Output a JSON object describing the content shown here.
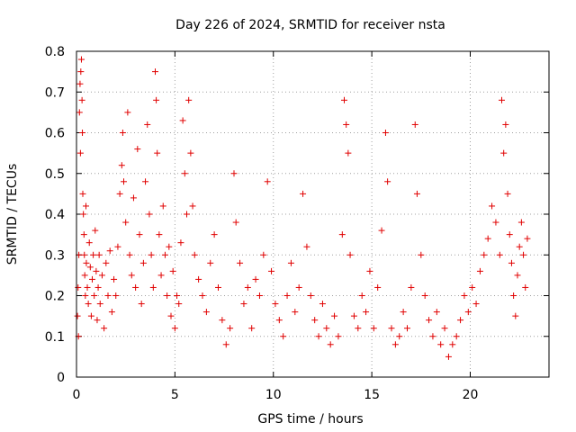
{
  "chart_data": {
    "type": "scatter",
    "title": "Day 226 of 2024, SRMTID for receiver nsta",
    "xlabel": "GPS time / hours",
    "ylabel": "SRMTID / TECUs",
    "xlim": [
      0,
      24
    ],
    "ylim": [
      0,
      0.8
    ],
    "xticks": [
      0,
      5,
      10,
      15,
      20
    ],
    "xtick_labels": [
      "0",
      "5",
      "10",
      "15",
      "20"
    ],
    "yticks": [
      0,
      0.1,
      0.2,
      0.3,
      0.4,
      0.5,
      0.6,
      0.7,
      0.8
    ],
    "ytick_labels": [
      "0",
      "0.1",
      "0.2",
      "0.3",
      "0.4",
      "0.5",
      "0.6",
      "0.7",
      "0.8"
    ],
    "grid": true,
    "marker": "plus",
    "color": "#e00000",
    "series": [
      {
        "name": "nsta",
        "points": [
          [
            0.05,
            0.15
          ],
          [
            0.08,
            0.22
          ],
          [
            0.1,
            0.1
          ],
          [
            0.12,
            0.3
          ],
          [
            0.15,
            0.65
          ],
          [
            0.18,
            0.72
          ],
          [
            0.2,
            0.55
          ],
          [
            0.22,
            0.75
          ],
          [
            0.25,
            0.78
          ],
          [
            0.28,
            0.68
          ],
          [
            0.3,
            0.6
          ],
          [
            0.32,
            0.45
          ],
          [
            0.35,
            0.4
          ],
          [
            0.38,
            0.35
          ],
          [
            0.4,
            0.3
          ],
          [
            0.42,
            0.25
          ],
          [
            0.45,
            0.2
          ],
          [
            0.48,
            0.42
          ],
          [
            0.5,
            0.28
          ],
          [
            0.55,
            0.22
          ],
          [
            0.6,
            0.18
          ],
          [
            0.65,
            0.33
          ],
          [
            0.7,
            0.27
          ],
          [
            0.75,
            0.15
          ],
          [
            0.8,
            0.24
          ],
          [
            0.85,
            0.3
          ],
          [
            0.9,
            0.2
          ],
          [
            0.95,
            0.36
          ],
          [
            1.0,
            0.26
          ],
          [
            1.05,
            0.14
          ],
          [
            1.1,
            0.22
          ],
          [
            1.15,
            0.3
          ],
          [
            1.2,
            0.18
          ],
          [
            1.3,
            0.25
          ],
          [
            1.4,
            0.12
          ],
          [
            1.5,
            0.28
          ],
          [
            1.6,
            0.2
          ],
          [
            1.7,
            0.31
          ],
          [
            1.8,
            0.16
          ],
          [
            1.9,
            0.24
          ],
          [
            2.0,
            0.2
          ],
          [
            2.1,
            0.32
          ],
          [
            2.2,
            0.45
          ],
          [
            2.3,
            0.52
          ],
          [
            2.35,
            0.6
          ],
          [
            2.4,
            0.48
          ],
          [
            2.5,
            0.38
          ],
          [
            2.6,
            0.65
          ],
          [
            2.7,
            0.3
          ],
          [
            2.8,
            0.25
          ],
          [
            2.9,
            0.44
          ],
          [
            3.0,
            0.22
          ],
          [
            3.1,
            0.56
          ],
          [
            3.2,
            0.35
          ],
          [
            3.3,
            0.18
          ],
          [
            3.4,
            0.28
          ],
          [
            3.5,
            0.48
          ],
          [
            3.6,
            0.62
          ],
          [
            3.7,
            0.4
          ],
          [
            3.8,
            0.3
          ],
          [
            3.9,
            0.22
          ],
          [
            4.0,
            0.75
          ],
          [
            4.05,
            0.68
          ],
          [
            4.1,
            0.55
          ],
          [
            4.2,
            0.35
          ],
          [
            4.3,
            0.25
          ],
          [
            4.4,
            0.42
          ],
          [
            4.5,
            0.3
          ],
          [
            4.6,
            0.2
          ],
          [
            4.7,
            0.32
          ],
          [
            4.8,
            0.15
          ],
          [
            4.9,
            0.26
          ],
          [
            5.0,
            0.12
          ],
          [
            5.1,
            0.2
          ],
          [
            5.2,
            0.18
          ],
          [
            5.3,
            0.33
          ],
          [
            5.4,
            0.63
          ],
          [
            5.5,
            0.5
          ],
          [
            5.6,
            0.4
          ],
          [
            5.7,
            0.68
          ],
          [
            5.8,
            0.55
          ],
          [
            5.9,
            0.42
          ],
          [
            6.0,
            0.3
          ],
          [
            6.2,
            0.24
          ],
          [
            6.4,
            0.2
          ],
          [
            6.6,
            0.16
          ],
          [
            6.8,
            0.28
          ],
          [
            7.0,
            0.35
          ],
          [
            7.2,
            0.22
          ],
          [
            7.4,
            0.14
          ],
          [
            7.6,
            0.08
          ],
          [
            7.8,
            0.12
          ],
          [
            8.0,
            0.5
          ],
          [
            8.1,
            0.38
          ],
          [
            8.3,
            0.28
          ],
          [
            8.5,
            0.18
          ],
          [
            8.7,
            0.22
          ],
          [
            8.9,
            0.12
          ],
          [
            9.1,
            0.24
          ],
          [
            9.3,
            0.2
          ],
          [
            9.5,
            0.3
          ],
          [
            9.7,
            0.48
          ],
          [
            9.9,
            0.26
          ],
          [
            10.1,
            0.18
          ],
          [
            10.3,
            0.14
          ],
          [
            10.5,
            0.1
          ],
          [
            10.7,
            0.2
          ],
          [
            10.9,
            0.28
          ],
          [
            11.1,
            0.16
          ],
          [
            11.3,
            0.22
          ],
          [
            11.5,
            0.45
          ],
          [
            11.7,
            0.32
          ],
          [
            11.9,
            0.2
          ],
          [
            12.1,
            0.14
          ],
          [
            12.3,
            0.1
          ],
          [
            12.5,
            0.18
          ],
          [
            12.7,
            0.12
          ],
          [
            12.9,
            0.08
          ],
          [
            13.1,
            0.15
          ],
          [
            13.3,
            0.1
          ],
          [
            13.5,
            0.35
          ],
          [
            13.6,
            0.68
          ],
          [
            13.7,
            0.62
          ],
          [
            13.8,
            0.55
          ],
          [
            13.9,
            0.3
          ],
          [
            14.1,
            0.15
          ],
          [
            14.3,
            0.12
          ],
          [
            14.5,
            0.2
          ],
          [
            14.7,
            0.16
          ],
          [
            14.9,
            0.26
          ],
          [
            15.1,
            0.12
          ],
          [
            15.3,
            0.22
          ],
          [
            15.5,
            0.36
          ],
          [
            15.7,
            0.6
          ],
          [
            15.8,
            0.48
          ],
          [
            16.0,
            0.12
          ],
          [
            16.2,
            0.08
          ],
          [
            16.4,
            0.1
          ],
          [
            16.6,
            0.16
          ],
          [
            16.8,
            0.12
          ],
          [
            17.0,
            0.22
          ],
          [
            17.2,
            0.62
          ],
          [
            17.3,
            0.45
          ],
          [
            17.5,
            0.3
          ],
          [
            17.7,
            0.2
          ],
          [
            17.9,
            0.14
          ],
          [
            18.1,
            0.1
          ],
          [
            18.3,
            0.16
          ],
          [
            18.5,
            0.08
          ],
          [
            18.7,
            0.12
          ],
          [
            18.9,
            0.05
          ],
          [
            19.1,
            0.08
          ],
          [
            19.3,
            0.1
          ],
          [
            19.5,
            0.14
          ],
          [
            19.7,
            0.2
          ],
          [
            19.9,
            0.16
          ],
          [
            20.1,
            0.22
          ],
          [
            20.3,
            0.18
          ],
          [
            20.5,
            0.26
          ],
          [
            20.7,
            0.3
          ],
          [
            20.9,
            0.34
          ],
          [
            21.1,
            0.42
          ],
          [
            21.3,
            0.38
          ],
          [
            21.5,
            0.3
          ],
          [
            21.6,
            0.68
          ],
          [
            21.7,
            0.55
          ],
          [
            21.8,
            0.62
          ],
          [
            21.9,
            0.45
          ],
          [
            22.0,
            0.35
          ],
          [
            22.1,
            0.28
          ],
          [
            22.2,
            0.2
          ],
          [
            22.3,
            0.15
          ],
          [
            22.4,
            0.25
          ],
          [
            22.5,
            0.32
          ],
          [
            22.6,
            0.38
          ],
          [
            22.7,
            0.3
          ],
          [
            22.8,
            0.22
          ],
          [
            22.9,
            0.34
          ]
        ]
      }
    ]
  }
}
